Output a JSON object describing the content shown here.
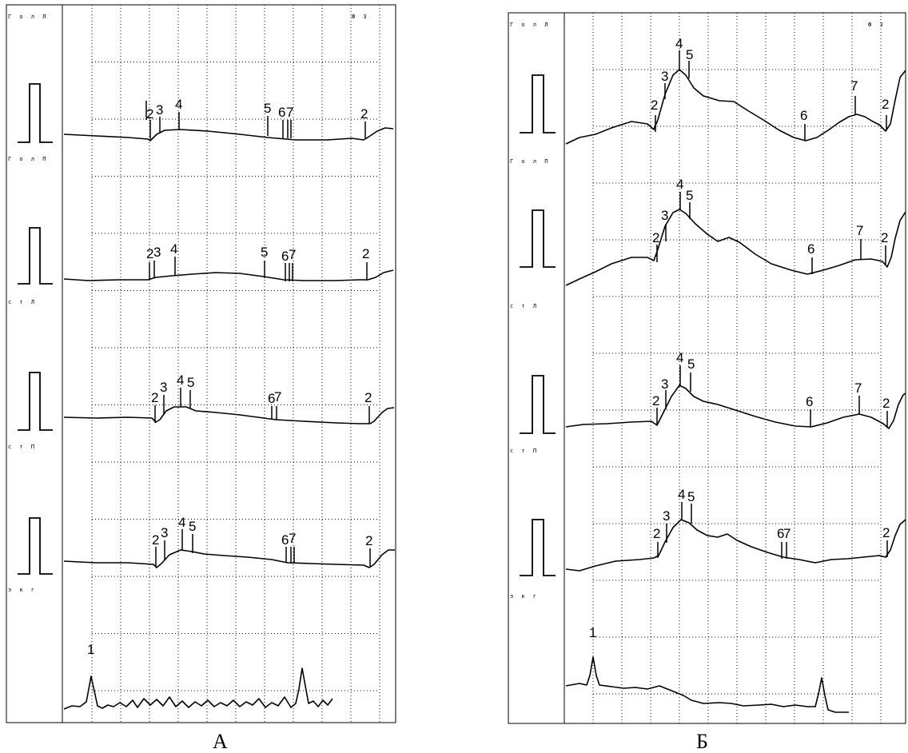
{
  "panels": [
    {
      "id": "A",
      "caption": "А",
      "header_left": "Г о л Л",
      "header_right": "Ф 3",
      "lead_labels": [
        "Г о л П",
        "с т Л",
        "с т П",
        "э к г"
      ],
      "channels": [
        {
          "marks": [
            "2",
            "3",
            "4",
            "5",
            "6",
            "7",
            "2"
          ]
        },
        {
          "marks": [
            "2",
            "3",
            "4",
            "5",
            "6",
            "7",
            "2"
          ]
        },
        {
          "marks": [
            "2",
            "3",
            "4",
            "5",
            "6",
            "7",
            "2"
          ]
        },
        {
          "marks": [
            "2",
            "3",
            "4",
            "5",
            "6",
            "7",
            "2"
          ]
        }
      ],
      "ecg_label": "1"
    },
    {
      "id": "B",
      "caption": "Б",
      "header_left": "Г о л Л",
      "header_right": "Ф 3",
      "lead_labels": [
        "Г о л П",
        "с т Л",
        "с т П",
        "э к г"
      ],
      "channels": [
        {
          "marks": [
            "2",
            "3",
            "4",
            "5",
            "6",
            "7",
            "2"
          ]
        },
        {
          "marks": [
            "2",
            "3",
            "4",
            "5",
            "6",
            "7",
            "2"
          ]
        },
        {
          "marks": [
            "2",
            "3",
            "4",
            "5",
            "6",
            "7",
            "2"
          ]
        },
        {
          "marks": [
            "2",
            "3",
            "4",
            "5",
            "6",
            "7",
            "2"
          ]
        }
      ],
      "ecg_label": "1"
    }
  ]
}
